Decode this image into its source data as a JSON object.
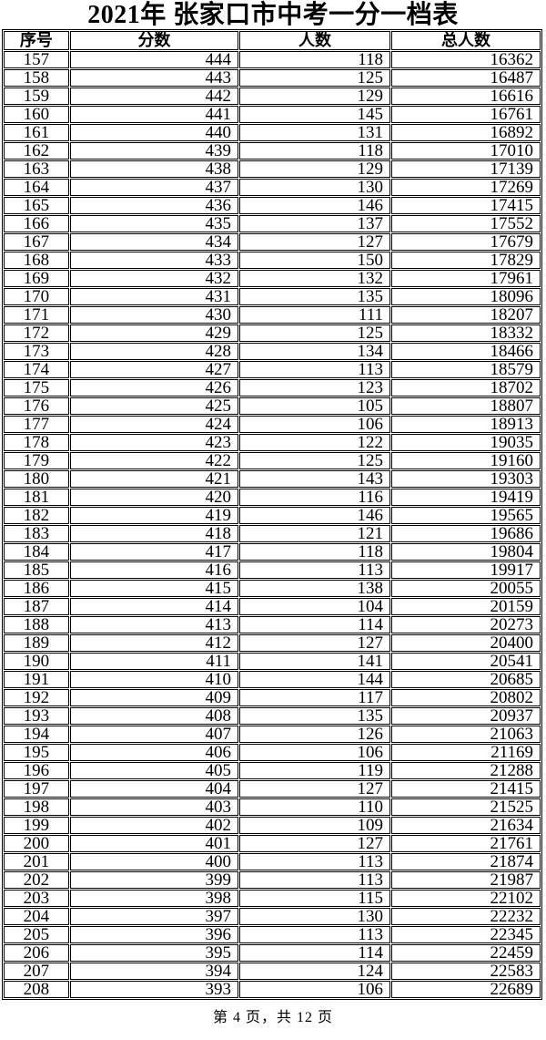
{
  "title": "2021年 张家口市中考一分一档表",
  "table": {
    "headers": [
      "序号",
      "分数",
      "人数",
      "总人数"
    ],
    "rows": [
      [
        157,
        444,
        118,
        16362
      ],
      [
        158,
        443,
        125,
        16487
      ],
      [
        159,
        442,
        129,
        16616
      ],
      [
        160,
        441,
        145,
        16761
      ],
      [
        161,
        440,
        131,
        16892
      ],
      [
        162,
        439,
        118,
        17010
      ],
      [
        163,
        438,
        129,
        17139
      ],
      [
        164,
        437,
        130,
        17269
      ],
      [
        165,
        436,
        146,
        17415
      ],
      [
        166,
        435,
        137,
        17552
      ],
      [
        167,
        434,
        127,
        17679
      ],
      [
        168,
        433,
        150,
        17829
      ],
      [
        169,
        432,
        132,
        17961
      ],
      [
        170,
        431,
        135,
        18096
      ],
      [
        171,
        430,
        111,
        18207
      ],
      [
        172,
        429,
        125,
        18332
      ],
      [
        173,
        428,
        134,
        18466
      ],
      [
        174,
        427,
        113,
        18579
      ],
      [
        175,
        426,
        123,
        18702
      ],
      [
        176,
        425,
        105,
        18807
      ],
      [
        177,
        424,
        106,
        18913
      ],
      [
        178,
        423,
        122,
        19035
      ],
      [
        179,
        422,
        125,
        19160
      ],
      [
        180,
        421,
        143,
        19303
      ],
      [
        181,
        420,
        116,
        19419
      ],
      [
        182,
        419,
        146,
        19565
      ],
      [
        183,
        418,
        121,
        19686
      ],
      [
        184,
        417,
        118,
        19804
      ],
      [
        185,
        416,
        113,
        19917
      ],
      [
        186,
        415,
        138,
        20055
      ],
      [
        187,
        414,
        104,
        20159
      ],
      [
        188,
        413,
        114,
        20273
      ],
      [
        189,
        412,
        127,
        20400
      ],
      [
        190,
        411,
        141,
        20541
      ],
      [
        191,
        410,
        144,
        20685
      ],
      [
        192,
        409,
        117,
        20802
      ],
      [
        193,
        408,
        135,
        20937
      ],
      [
        194,
        407,
        126,
        21063
      ],
      [
        195,
        406,
        106,
        21169
      ],
      [
        196,
        405,
        119,
        21288
      ],
      [
        197,
        404,
        127,
        21415
      ],
      [
        198,
        403,
        110,
        21525
      ],
      [
        199,
        402,
        109,
        21634
      ],
      [
        200,
        401,
        127,
        21761
      ],
      [
        201,
        400,
        113,
        21874
      ],
      [
        202,
        399,
        113,
        21987
      ],
      [
        203,
        398,
        115,
        22102
      ],
      [
        204,
        397,
        130,
        22232
      ],
      [
        205,
        396,
        113,
        22345
      ],
      [
        206,
        395,
        114,
        22459
      ],
      [
        207,
        394,
        124,
        22583
      ],
      [
        208,
        393,
        106,
        22689
      ]
    ]
  },
  "footer": {
    "text": "第 4 页，共 12 页"
  }
}
